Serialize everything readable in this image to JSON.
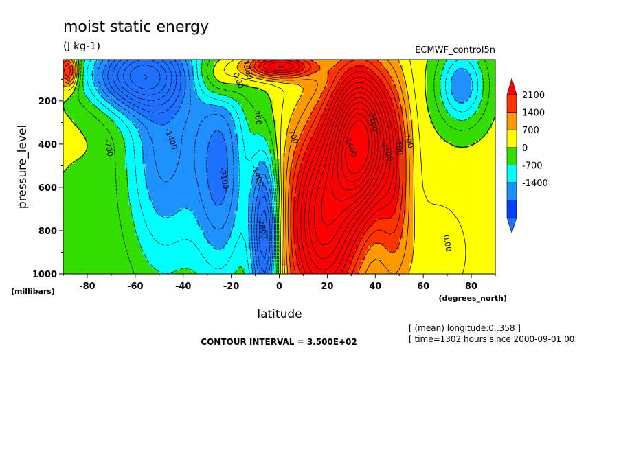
{
  "chart_data": {
    "type": "heatmap",
    "title": "moist static energy",
    "subtitle": "(J kg-1)",
    "dataset": "ECMWF_control5n",
    "xlabel": "latitude",
    "ylabel": "pressure_level",
    "x_unit": "(degrees_north)",
    "y_unit": "(millibars)",
    "xlim": [
      -90,
      90
    ],
    "ylim": [
      1000,
      10
    ],
    "x_ticks": [
      -80,
      -60,
      -40,
      -20,
      0,
      20,
      40,
      60,
      80
    ],
    "y_ticks": [
      200,
      400,
      600,
      800,
      1000
    ],
    "contour_interval": "CONTOUR INTERVAL = 3.500E+02",
    "notes": [
      "[ (mean) longitude:0..358 ]",
      "[ time=1302 hours since 2000-09-01 00:"
    ],
    "legend": {
      "labels": [
        "2100",
        "1400",
        "700",
        "0",
        "-700",
        "-1400"
      ],
      "colors": [
        "#ff3300",
        "#ff9900",
        "#ffff00",
        "#33dd00",
        "#00ffff",
        "#1e90ff",
        "#0040ff"
      ],
      "top_color": "#ff0000",
      "bottom_color": "#1e70ff"
    },
    "levels": [
      -2100,
      -1400,
      -700,
      0,
      700,
      1400,
      2100
    ],
    "contour_labels": [
      {
        "text": "-700",
        "x": -72,
        "y": 420
      },
      {
        "text": "-1400",
        "x": -46,
        "y": 380
      },
      {
        "text": "-2100",
        "x": -24,
        "y": 560
      },
      {
        "text": "-1400",
        "x": -10,
        "y": 550
      },
      {
        "text": "700",
        "x": -10,
        "y": 280
      },
      {
        "text": "0.00",
        "x": -18,
        "y": 110
      },
      {
        "text": "1400",
        "x": -14,
        "y": 60
      },
      {
        "text": "1400",
        "x": 29,
        "y": 420
      },
      {
        "text": "2100",
        "x": 38,
        "y": 300
      },
      {
        "text": "2100",
        "x": 44,
        "y": 440
      },
      {
        "text": "700",
        "x": 49,
        "y": 420
      },
      {
        "text": "700",
        "x": 53,
        "y": 390
      },
      {
        "text": "0.00",
        "x": 69,
        "y": 860
      },
      {
        "text": "700",
        "x": 5,
        "y": 370
      },
      {
        "text": "-2800",
        "x": -8,
        "y": 790
      }
    ],
    "field_features": [
      {
        "x": -60,
        "y": 80,
        "sx": 20,
        "sy": 160,
        "amp": -3300
      },
      {
        "x": -48,
        "y": 420,
        "sx": 17,
        "sy": 620,
        "amp": -2000
      },
      {
        "x": -24,
        "y": 520,
        "sx": 11,
        "sy": 540,
        "amp": -2200
      },
      {
        "x": -6,
        "y": 820,
        "sx": 6,
        "sy": 380,
        "amp": -3400
      },
      {
        "x": 18,
        "y": 760,
        "sx": 15,
        "sy": 450,
        "amp": 3800
      },
      {
        "x": 34,
        "y": 380,
        "sx": 12,
        "sy": 330,
        "amp": 5400
      },
      {
        "x": 48,
        "y": 620,
        "sx": 7,
        "sy": 480,
        "amp": 1400
      },
      {
        "x": 76,
        "y": 130,
        "sx": 10,
        "sy": 180,
        "amp": -1900
      },
      {
        "x": 0,
        "y": 40,
        "sx": 14,
        "sy": 55,
        "amp": 3000
      },
      {
        "x": -25,
        "y": 90,
        "sx": 10,
        "sy": 120,
        "amp": 1500
      },
      {
        "x": -88,
        "y": 60,
        "sx": 4,
        "sy": 80,
        "amp": 2400
      },
      {
        "x": 66,
        "y": 900,
        "sx": 14,
        "sy": 260,
        "amp": 400
      },
      {
        "x": -85,
        "y": 900,
        "sx": 12,
        "sy": 400,
        "amp": -400
      }
    ],
    "field_base": 150
  }
}
